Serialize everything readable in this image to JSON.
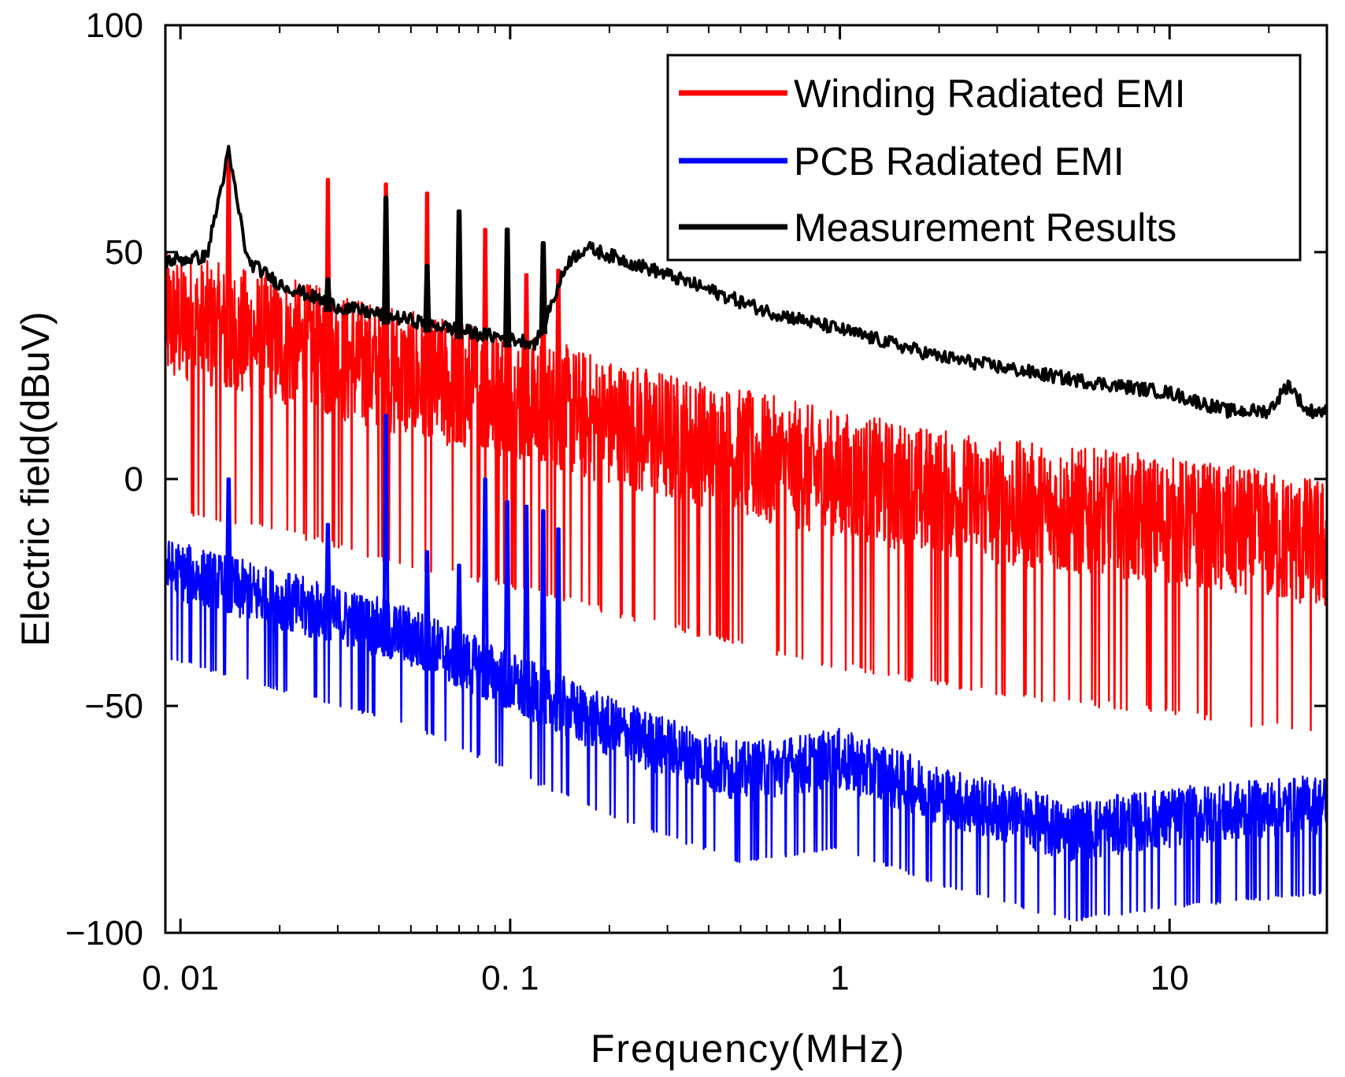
{
  "chart_data": {
    "type": "line",
    "title": "",
    "xlabel": "Frequency(MHz)",
    "ylabel": "Electric field(dBuV)",
    "xscale": "log",
    "xlim": [
      0.009,
      30
    ],
    "ylim": [
      -100,
      100
    ],
    "x_ticks": [
      0.01,
      0.1,
      1,
      10
    ],
    "x_tick_labels": [
      "0. 01",
      "0. 1",
      "1",
      "10"
    ],
    "y_ticks": [
      100,
      50,
      0,
      -50,
      -100
    ],
    "y_tick_labels": [
      "100",
      "50",
      "0",
      "−50",
      "−100"
    ],
    "grid": false,
    "legend_position": "top-right",
    "series": [
      {
        "name": "Winding Radiated EMI",
        "color": "#ff0000",
        "trend": [
          [
            0.009,
            35
          ],
          [
            0.02,
            30
          ],
          [
            0.05,
            22
          ],
          [
            0.1,
            18
          ],
          [
            0.2,
            12
          ],
          [
            0.5,
            5
          ],
          [
            1,
            0
          ],
          [
            3,
            -6
          ],
          [
            10,
            -10
          ],
          [
            30,
            -15
          ]
        ],
        "spikes": [
          [
            0.014,
            72
          ],
          [
            0.028,
            66
          ],
          [
            0.042,
            65
          ],
          [
            0.056,
            63
          ],
          [
            0.07,
            52
          ],
          [
            0.084,
            55
          ],
          [
            0.098,
            51
          ],
          [
            0.112,
            45
          ],
          [
            0.126,
            48
          ],
          [
            0.14,
            46
          ]
        ],
        "noise_band": 30
      },
      {
        "name": "PCB Radiated EMI",
        "color": "#0000ff",
        "trend": [
          [
            0.009,
            -20
          ],
          [
            0.02,
            -27
          ],
          [
            0.05,
            -35
          ],
          [
            0.1,
            -45
          ],
          [
            0.2,
            -55
          ],
          [
            0.5,
            -65
          ],
          [
            1,
            -62
          ],
          [
            2,
            -70
          ],
          [
            5,
            -78
          ],
          [
            10,
            -75
          ],
          [
            30,
            -72
          ]
        ],
        "spikes": [
          [
            0.014,
            0
          ],
          [
            0.028,
            -10
          ],
          [
            0.042,
            14
          ],
          [
            0.056,
            -16
          ],
          [
            0.07,
            -19
          ],
          [
            0.084,
            0
          ],
          [
            0.098,
            -5
          ],
          [
            0.112,
            -6
          ],
          [
            0.126,
            -7
          ],
          [
            0.14,
            -11
          ]
        ],
        "noise_band": 14
      },
      {
        "name": "Measurement Results",
        "color": "#000000",
        "trend": [
          [
            0.009,
            48
          ],
          [
            0.012,
            49
          ],
          [
            0.014,
            72
          ],
          [
            0.016,
            48
          ],
          [
            0.02,
            43
          ],
          [
            0.03,
            38
          ],
          [
            0.05,
            35
          ],
          [
            0.08,
            32
          ],
          [
            0.12,
            30
          ],
          [
            0.15,
            48
          ],
          [
            0.17,
            51
          ],
          [
            0.3,
            45
          ],
          [
            0.6,
            37
          ],
          [
            1,
            33
          ],
          [
            2,
            27
          ],
          [
            5,
            22
          ],
          [
            10,
            19
          ],
          [
            15,
            15
          ],
          [
            20,
            15
          ],
          [
            23,
            21
          ],
          [
            26,
            15
          ],
          [
            30,
            15
          ]
        ],
        "spikes": [
          [
            0.028,
            44
          ],
          [
            0.042,
            62
          ],
          [
            0.056,
            47
          ],
          [
            0.07,
            59
          ],
          [
            0.098,
            55
          ],
          [
            0.126,
            52
          ]
        ],
        "noise_band": 3
      }
    ]
  }
}
